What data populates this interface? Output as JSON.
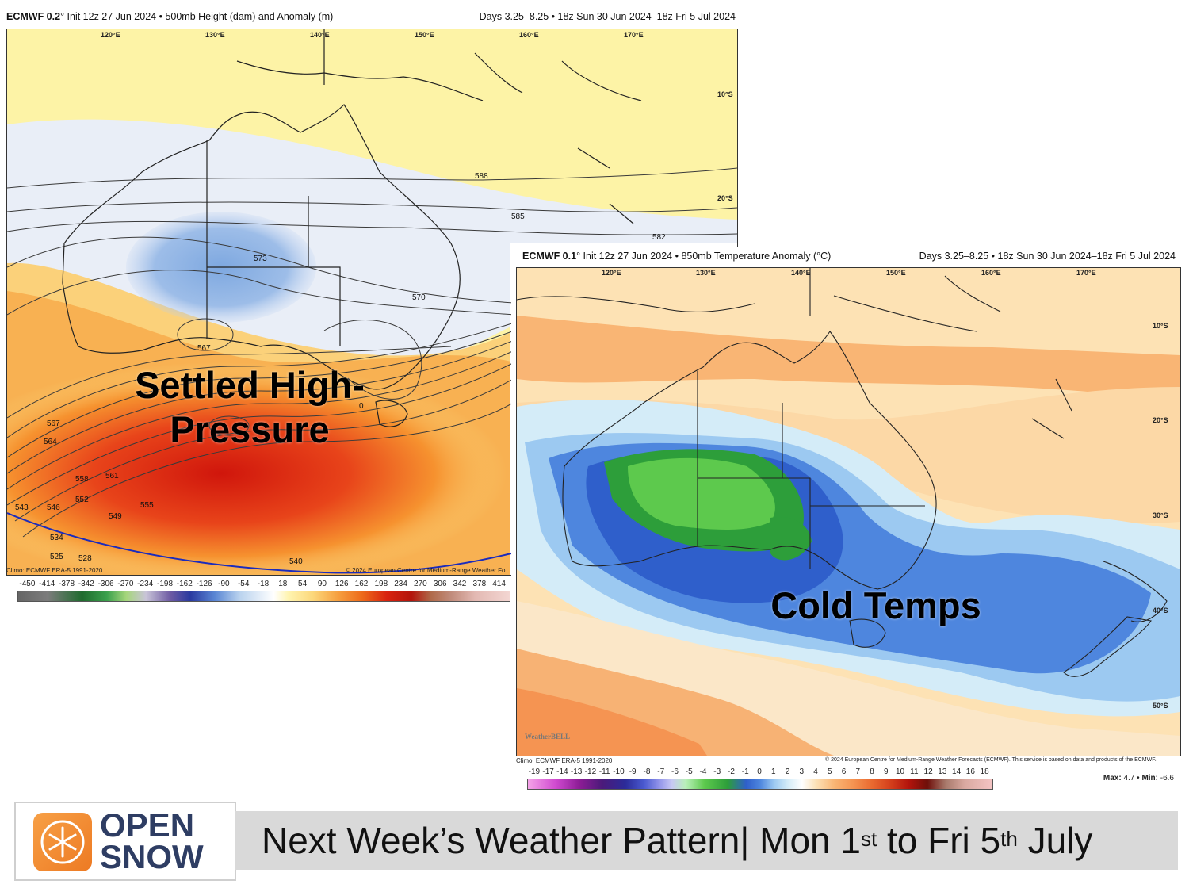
{
  "left_panel": {
    "model": "ECMWF 0.2",
    "header_left_rest": "° Init 12z 27 Jun 2024 • 500mb Height (dam) and Anomaly (m)",
    "header_right": "Days 3.25–8.25 • 18z Sun 30 Jun 2024–18z Fri 5 Jul 2024",
    "lon_labels": [
      "120°E",
      "130°E",
      "140°E",
      "150°E",
      "160°E",
      "170°E"
    ],
    "lat_labels": [
      "10°S",
      "20°S"
    ],
    "contour_labels": [
      "588",
      "585",
      "582",
      "573",
      "570",
      "567",
      "567",
      "564",
      "561",
      "558",
      "555",
      "552",
      "549",
      "546",
      "543",
      "540",
      "534",
      "528",
      "525",
      "0"
    ],
    "climo": "Climo: ECMWF ERA-5 1991-2020",
    "copyright": "© 2024 European Centre for Medium-Range Weather Fo",
    "colorbar_ticks": [
      "-450",
      "-414",
      "-378",
      "-342",
      "-306",
      "-270",
      "-234",
      "-198",
      "-162",
      "-126",
      "-90",
      "-54",
      "-18",
      "18",
      "54",
      "90",
      "126",
      "162",
      "198",
      "234",
      "270",
      "306",
      "342",
      "378",
      "414"
    ],
    "overlay": [
      "Settled High-",
      "Pressure"
    ]
  },
  "right_panel": {
    "model": "ECMWF 0.1",
    "header_left_rest": "° Init 12z 27 Jun 2024 • 850mb Temperature Anomaly (°C)",
    "header_right": "Days 3.25–8.25 • 18z Sun 30 Jun 2024–18z Fri 5 Jul 2024",
    "lon_labels": [
      "120°E",
      "130°E",
      "140°E",
      "150°E",
      "160°E",
      "170°E"
    ],
    "lat_labels": [
      "10°S",
      "20°S",
      "30°S",
      "40°S",
      "50°S"
    ],
    "climo": "Climo: ECMWF ERA-5 1991-2020",
    "copyright": "© 2024 European Centre for Medium-Range Weather Forecasts (ECMWF). This service is based on data and products of the ECMWF.",
    "colorbar_ticks": [
      "-19",
      "-17",
      "-14",
      "-13",
      "-12",
      "-11",
      "-10",
      "-9",
      "-8",
      "-7",
      "-6",
      "-5",
      "-4",
      "-3",
      "-2",
      "-1",
      "0",
      "1",
      "2",
      "3",
      "4",
      "5",
      "6",
      "7",
      "8",
      "9",
      "10",
      "11",
      "12",
      "13",
      "14",
      "16",
      "18"
    ],
    "max_label": "Max:",
    "max_value": "4.7",
    "min_label": "Min:",
    "min_value": "-6.6",
    "overlay": "Cold Temps",
    "watermark": "WeatherBELL"
  },
  "banner": {
    "logo_line1": "OPEN",
    "logo_line2": "SNOW",
    "title_main": "Next Week’s Weather Pattern| Mon 1",
    "title_sup1": "st",
    "title_mid": " to Fri 5",
    "title_sup2": "th",
    "title_end": " July"
  }
}
